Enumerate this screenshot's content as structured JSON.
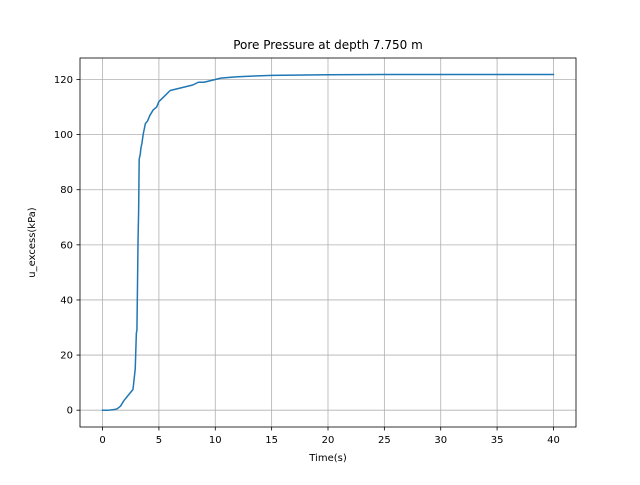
{
  "chart_data": {
    "type": "line",
    "title": "Pore Pressure at depth 7.750 m",
    "xlabel": "Time(s)",
    "ylabel": "u_excess(kPa)",
    "xlim": [
      -2,
      42
    ],
    "ylim": [
      -6.1,
      127.8
    ],
    "xticks": [
      0,
      5,
      10,
      15,
      20,
      25,
      30,
      35,
      40
    ],
    "yticks": [
      0,
      20,
      40,
      60,
      80,
      100,
      120
    ],
    "grid": true,
    "colors": {
      "line": "#1f77b4",
      "grid": "#b0b0b0",
      "axes": "#000000"
    },
    "series": [
      {
        "name": "",
        "x": [
          0,
          0.5,
          1.0,
          1.3,
          1.6,
          1.9,
          2.2,
          2.5,
          2.7,
          2.9,
          3.0,
          3.05,
          3.1,
          3.15,
          3.2,
          3.25,
          3.3,
          3.35,
          3.4,
          3.5,
          3.6,
          3.8,
          4.0,
          4.2,
          4.5,
          4.8,
          5.0,
          5.5,
          6.0,
          6.5,
          7.0,
          7.5,
          8.0,
          8.5,
          9.0,
          9.5,
          10.0,
          10.5,
          11.0,
          12.0,
          13.0,
          15.0,
          17.0,
          20.0,
          25.0,
          30.0,
          35.0,
          40.0
        ],
        "y": [
          0,
          0,
          0.2,
          0.5,
          1.5,
          3.5,
          5,
          6.5,
          7.5,
          15,
          28,
          29,
          45,
          62,
          72,
          91,
          92,
          93,
          95,
          97,
          100,
          104,
          105,
          107,
          109,
          110,
          112,
          114,
          116,
          116.5,
          117,
          117.5,
          118,
          119,
          119,
          119.5,
          120,
          120.5,
          120.7,
          121,
          121.2,
          121.5,
          121.6,
          121.7,
          121.8,
          121.8,
          121.8,
          121.8
        ]
      }
    ]
  }
}
